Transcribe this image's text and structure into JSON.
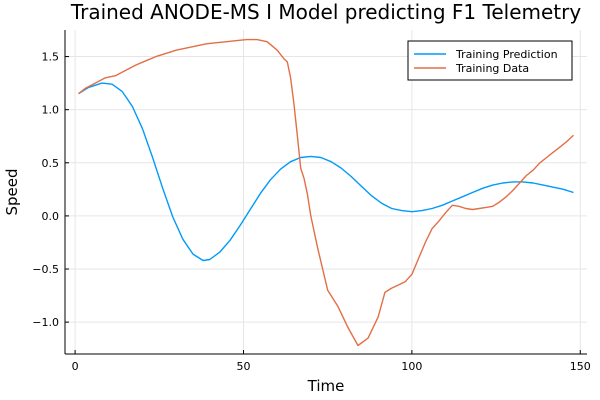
{
  "chart_data": {
    "type": "line",
    "title": "Trained ANODE-MS I Model predicting F1 Telemetry",
    "xlabel": "Time",
    "ylabel": "Speed",
    "xlim": [
      -3,
      152
    ],
    "ylim": [
      -1.3,
      1.75
    ],
    "xticks": [
      0,
      50,
      100,
      150
    ],
    "xtick_labels": [
      "0",
      "50",
      "100",
      "150"
    ],
    "yticks": [
      -1.0,
      -0.5,
      0.0,
      0.5,
      1.0,
      1.5
    ],
    "ytick_labels": [
      "−1.0",
      "−0.5",
      "0.0",
      "0.5",
      "1.0",
      "1.5"
    ],
    "grid": true,
    "legend_position": "top-right",
    "series": [
      {
        "name": "Training Prediction",
        "color": "#009AFA",
        "x": [
          1,
          4,
          8,
          11,
          14,
          17,
          20,
          23,
          26,
          29,
          32,
          35,
          38,
          40,
          43,
          46,
          49,
          52,
          55,
          58,
          61,
          64,
          67,
          70,
          73,
          76,
          79,
          82,
          85,
          88,
          91,
          94,
          97,
          100,
          103,
          106,
          109,
          112,
          115,
          118,
          121,
          124,
          127,
          130,
          133,
          136,
          139,
          142,
          145,
          148
        ],
        "y": [
          1.15,
          1.21,
          1.25,
          1.24,
          1.17,
          1.03,
          0.82,
          0.55,
          0.26,
          -0.01,
          -0.22,
          -0.36,
          -0.42,
          -0.41,
          -0.34,
          -0.23,
          -0.09,
          0.06,
          0.21,
          0.34,
          0.44,
          0.51,
          0.55,
          0.56,
          0.55,
          0.51,
          0.45,
          0.37,
          0.28,
          0.19,
          0.12,
          0.07,
          0.05,
          0.04,
          0.05,
          0.07,
          0.1,
          0.14,
          0.18,
          0.22,
          0.26,
          0.29,
          0.31,
          0.32,
          0.32,
          0.31,
          0.29,
          0.27,
          0.25,
          0.22
        ]
      },
      {
        "name": "Training Data",
        "color": "#E26F46",
        "x": [
          1,
          3,
          6,
          9,
          12,
          15,
          18,
          21,
          24,
          27,
          30,
          33,
          36,
          39,
          42,
          45,
          48,
          51,
          54,
          57,
          60,
          62,
          63,
          64,
          65,
          66,
          67,
          68,
          69,
          70,
          72,
          75,
          78,
          81,
          84,
          87,
          90,
          92,
          94,
          96,
          98,
          100,
          102,
          104,
          106,
          108,
          110,
          112,
          114,
          116,
          118,
          120,
          122,
          124,
          126,
          128,
          130,
          132,
          134,
          136,
          138,
          140,
          142,
          144,
          146,
          148
        ],
        "y": [
          1.15,
          1.2,
          1.25,
          1.3,
          1.32,
          1.37,
          1.42,
          1.46,
          1.5,
          1.53,
          1.56,
          1.58,
          1.6,
          1.62,
          1.63,
          1.64,
          1.65,
          1.66,
          1.66,
          1.64,
          1.56,
          1.48,
          1.45,
          1.3,
          1.05,
          0.75,
          0.45,
          0.35,
          0.2,
          0.0,
          -0.3,
          -0.7,
          -0.85,
          -1.05,
          -1.22,
          -1.15,
          -0.95,
          -0.72,
          -0.68,
          -0.65,
          -0.62,
          -0.55,
          -0.4,
          -0.25,
          -0.12,
          -0.05,
          0.03,
          0.1,
          0.09,
          0.07,
          0.06,
          0.07,
          0.08,
          0.09,
          0.13,
          0.18,
          0.24,
          0.31,
          0.38,
          0.43,
          0.5,
          0.55,
          0.6,
          0.65,
          0.7,
          0.76
        ]
      }
    ]
  }
}
